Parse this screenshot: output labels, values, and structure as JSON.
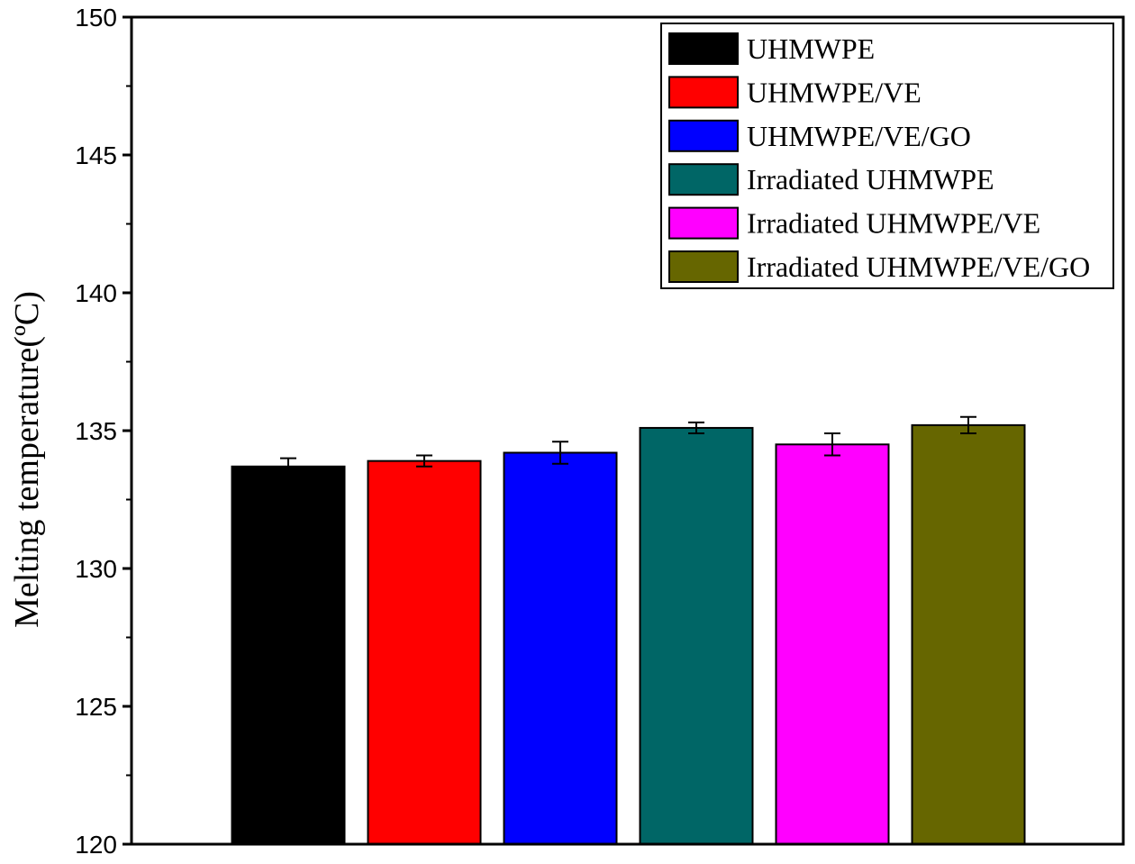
{
  "chart_data": {
    "type": "bar",
    "title": "",
    "xlabel": "",
    "ylabel": "Melting temperature(ºC)",
    "ylim": [
      120,
      150
    ],
    "yticks": [
      "120",
      "125",
      "130",
      "135",
      "140",
      "145",
      "150"
    ],
    "grid": false,
    "legend_position": "top-right",
    "series": [
      {
        "name": "UHMWPE",
        "value": 133.7,
        "error": 0.3,
        "color": "#000000"
      },
      {
        "name": "UHMWPE/VE",
        "value": 133.9,
        "error": 0.2,
        "color": "#ff0000"
      },
      {
        "name": "UHMWPE/VE/GO",
        "value": 134.2,
        "error": 0.4,
        "color": "#0000ff"
      },
      {
        "name": "Irradiated UHMWPE",
        "value": 135.1,
        "error": 0.2,
        "color": "#006666"
      },
      {
        "name": "Irradiated UHMWPE/VE",
        "value": 134.5,
        "error": 0.4,
        "color": "#ff00ff"
      },
      {
        "name": "Irradiated UHMWPE/VE/GO",
        "value": 135.2,
        "error": 0.3,
        "color": "#666600"
      }
    ]
  }
}
